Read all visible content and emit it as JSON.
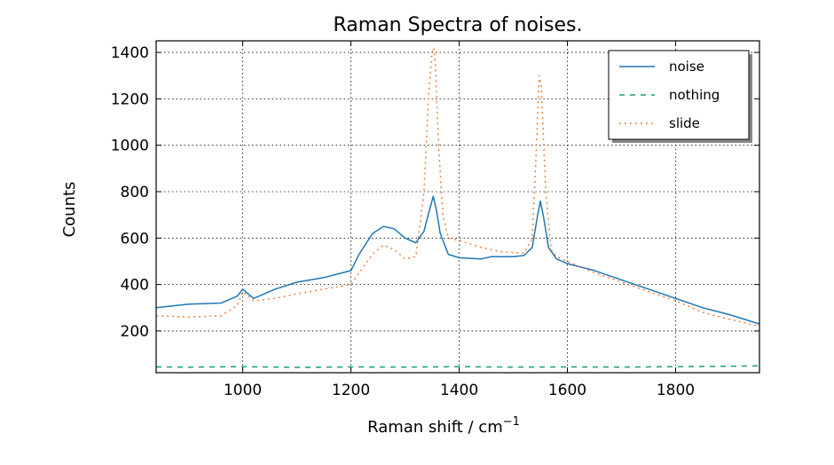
{
  "chart_data": {
    "type": "line",
    "title": "Raman Spectra of noises.",
    "xlabel": "Raman shift / cm",
    "xlabel_superscript": "−1",
    "ylabel": "Counts",
    "xlim": [
      840,
      1955
    ],
    "ylim": [
      20,
      1450
    ],
    "xticks": [
      1000,
      1200,
      1400,
      1600,
      1800
    ],
    "yticks": [
      200,
      400,
      600,
      800,
      1000,
      1200,
      1400
    ],
    "grid": true,
    "legend_position": "top-right",
    "series": [
      {
        "name": "noise",
        "color": "#1f77b4",
        "style": "solid",
        "x": [
          840,
          900,
          960,
          990,
          1000,
          1010,
          1020,
          1060,
          1100,
          1150,
          1200,
          1215,
          1240,
          1260,
          1280,
          1300,
          1320,
          1335,
          1345,
          1352,
          1358,
          1365,
          1380,
          1400,
          1440,
          1460,
          1480,
          1500,
          1520,
          1535,
          1545,
          1550,
          1556,
          1565,
          1580,
          1600,
          1650,
          1700,
          1750,
          1800,
          1850,
          1900,
          1955
        ],
        "y": [
          300,
          315,
          320,
          350,
          380,
          360,
          340,
          380,
          410,
          430,
          460,
          530,
          620,
          650,
          640,
          600,
          580,
          630,
          720,
          780,
          720,
          620,
          530,
          515,
          510,
          520,
          520,
          520,
          525,
          560,
          700,
          760,
          690,
          560,
          510,
          490,
          460,
          420,
          380,
          340,
          300,
          270,
          230
        ]
      },
      {
        "name": "nothing",
        "color": "#1a9e77",
        "style": "dashed",
        "x": [
          840,
          900,
          1000,
          1100,
          1200,
          1300,
          1400,
          1500,
          1600,
          1700,
          1800,
          1900,
          1955
        ],
        "y": [
          45,
          44,
          46,
          43,
          45,
          44,
          46,
          44,
          45,
          44,
          46,
          48,
          50
        ]
      },
      {
        "name": "slide",
        "color": "#f07f3c",
        "style": "dotted",
        "x": [
          840,
          900,
          960,
          990,
          1000,
          1010,
          1020,
          1060,
          1100,
          1150,
          1200,
          1215,
          1240,
          1260,
          1280,
          1300,
          1320,
          1335,
          1343,
          1350,
          1353,
          1356,
          1362,
          1370,
          1380,
          1400,
          1440,
          1480,
          1520,
          1535,
          1543,
          1548,
          1552,
          1560,
          1570,
          1580,
          1600,
          1650,
          1700,
          1750,
          1800,
          1850,
          1900,
          1955
        ],
        "y": [
          265,
          260,
          265,
          310,
          370,
          350,
          330,
          340,
          360,
          380,
          400,
          450,
          530,
          570,
          550,
          510,
          520,
          800,
          1200,
          1400,
          1420,
          1350,
          1000,
          700,
          600,
          590,
          560,
          540,
          535,
          600,
          1000,
          1300,
          1250,
          800,
          550,
          520,
          500,
          450,
          410,
          370,
          330,
          280,
          250,
          220
        ]
      }
    ]
  }
}
